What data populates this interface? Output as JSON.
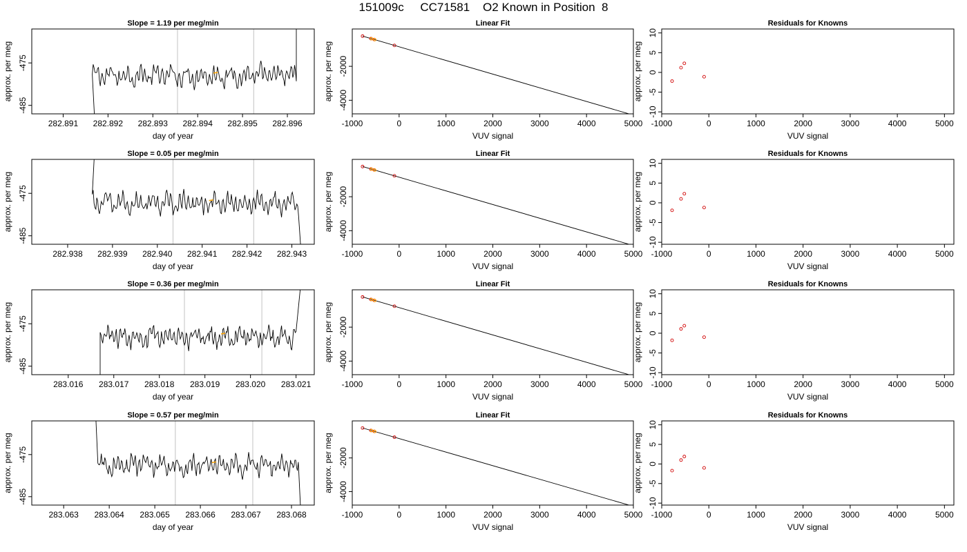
{
  "figure": {
    "title": "151009c     CC71581    O2 Known in Position  8"
  },
  "colors": {
    "trace": "#000000",
    "highlight": "#ffa500",
    "points": "#d00000",
    "guide": "#cccccc",
    "axis": "#000000"
  },
  "chart_data": [
    {
      "type": "line",
      "row": 0,
      "title": "Slope =  1.19  per meg/min",
      "xlabel": "day of year",
      "ylabel": "approx. per meg",
      "xlim": [
        282.8903,
        282.8966
      ],
      "ylim": [
        -487,
        -467
      ],
      "xticks": [
        "282.891",
        "282.892",
        "282.893",
        "282.894",
        "282.895",
        "282.896"
      ],
      "yticks": [
        "-475",
        "-485"
      ],
      "vlines": [
        282.89355,
        282.89525
      ],
      "x_start": 282.89165,
      "x_end": 282.8962,
      "baseline": -478.0,
      "steep_start": [
        282.8917,
        -488
      ],
      "steep_end": [
        282.8962,
        -466
      ],
      "highlight_x": 282.8944
    },
    {
      "type": "line",
      "row": 1,
      "title": "Slope =  0.05  per meg/min",
      "xlabel": "day of year",
      "ylabel": "approx. per meg",
      "xlim": [
        282.9372,
        282.9435
      ],
      "ylim": [
        -487,
        -467
      ],
      "xticks": [
        "282.938",
        "282.939",
        "282.940",
        "282.941",
        "282.942",
        "282.943"
      ],
      "yticks": [
        "-475",
        "-485"
      ],
      "vlines": [
        282.94035,
        282.94215
      ],
      "x_start": 282.93855,
      "x_end": 282.94315,
      "baseline": -477.3,
      "steep_start": [
        282.9386,
        -465
      ],
      "steep_end": [
        282.9432,
        -488
      ],
      "highlight_x": 282.9412
    },
    {
      "type": "line",
      "row": 2,
      "title": "Slope =  0.36  per meg/min",
      "xlabel": "day of year",
      "ylabel": "approx. per meg",
      "xlim": [
        283.0152,
        283.0214
      ],
      "ylim": [
        -487,
        -467
      ],
      "xticks": [
        "283.016",
        "283.017",
        "283.018",
        "283.019",
        "283.020",
        "283.021"
      ],
      "yticks": [
        "-475",
        "-485"
      ],
      "vlines": [
        283.01855,
        283.02025
      ],
      "x_start": 283.0167,
      "x_end": 283.021,
      "baseline": -478.0,
      "steep_start": [
        283.0167,
        -488
      ],
      "steep_end": [
        283.0211,
        -466
      ],
      "highlight_x": 283.0194
    },
    {
      "type": "line",
      "row": 3,
      "title": "Slope =  0.57  per meg/min",
      "xlabel": "day of year",
      "ylabel": "approx. per meg",
      "xlim": [
        283.0623,
        283.0685
      ],
      "ylim": [
        -487,
        -467
      ],
      "xticks": [
        "283.063",
        "283.064",
        "283.065",
        "283.066",
        "283.067",
        "283.068"
      ],
      "yticks": [
        "-475",
        "-485"
      ],
      "vlines": [
        283.06545,
        283.06715
      ],
      "x_start": 283.06375,
      "x_end": 283.06815,
      "baseline": -477.5,
      "steep_start": [
        283.0637,
        -465
      ],
      "steep_end": [
        283.0682,
        -488
      ],
      "highlight_x": 283.0663
    },
    {
      "type": "line",
      "row": 0,
      "title": "Linear Fit",
      "xlabel": "VUV signal",
      "ylabel": "approx. per meg",
      "xlim": [
        -1000,
        5000
      ],
      "ylim": [
        -4800,
        200
      ],
      "xticks": [
        -1000,
        0,
        1000,
        2000,
        3000,
        4000,
        5000
      ],
      "yticks": [
        -2000,
        -4000
      ],
      "line": {
        "x": [
          -780,
          4930
        ],
        "y": [
          -220,
          -4820
        ]
      },
      "points": [
        [
          -780,
          -222
        ],
        [
          -600,
          -368
        ],
        [
          -530,
          -423
        ],
        [
          -100,
          -768
        ]
      ],
      "highlight_points": [
        [
          -590,
          -375
        ],
        [
          -520,
          -430
        ]
      ]
    },
    {
      "type": "line",
      "row": 1,
      "title": "Linear Fit",
      "xlabel": "VUV signal",
      "ylabel": "approx. per meg",
      "xlim": [
        -1000,
        5000
      ],
      "ylim": [
        -4800,
        200
      ],
      "xticks": [
        -1000,
        0,
        1000,
        2000,
        3000,
        4000,
        5000
      ],
      "yticks": [
        -2000,
        -4000
      ],
      "line": {
        "x": [
          -780,
          4930
        ],
        "y": [
          -220,
          -4820
        ]
      },
      "points": [
        [
          -780,
          -222
        ],
        [
          -600,
          -368
        ],
        [
          -530,
          -423
        ],
        [
          -100,
          -768
        ]
      ],
      "highlight_points": [
        [
          -590,
          -375
        ],
        [
          -520,
          -430
        ]
      ]
    },
    {
      "type": "line",
      "row": 2,
      "title": "Linear Fit",
      "xlabel": "VUV signal",
      "ylabel": "approx. per meg",
      "xlim": [
        -1000,
        5000
      ],
      "ylim": [
        -4800,
        200
      ],
      "xticks": [
        -1000,
        0,
        1000,
        2000,
        3000,
        4000,
        5000
      ],
      "yticks": [
        -2000,
        -4000
      ],
      "line": {
        "x": [
          -780,
          4930
        ],
        "y": [
          -220,
          -4820
        ]
      },
      "points": [
        [
          -780,
          -222
        ],
        [
          -600,
          -368
        ],
        [
          -530,
          -423
        ],
        [
          -100,
          -768
        ]
      ],
      "highlight_points": [
        [
          -590,
          -375
        ],
        [
          -520,
          -430
        ]
      ]
    },
    {
      "type": "line",
      "row": 3,
      "title": "Linear Fit",
      "xlabel": "VUV signal",
      "ylabel": "approx. per meg",
      "xlim": [
        -1000,
        5000
      ],
      "ylim": [
        -4800,
        200
      ],
      "xticks": [
        -1000,
        0,
        1000,
        2000,
        3000,
        4000,
        5000
      ],
      "yticks": [
        -2000,
        -4000
      ],
      "line": {
        "x": [
          -780,
          4930
        ],
        "y": [
          -220,
          -4820
        ]
      },
      "points": [
        [
          -780,
          -222
        ],
        [
          -600,
          -368
        ],
        [
          -530,
          -423
        ],
        [
          -100,
          -768
        ]
      ],
      "highlight_points": [
        [
          -590,
          -375
        ],
        [
          -520,
          -430
        ]
      ]
    },
    {
      "type": "scatter",
      "row": 0,
      "title": "Residuals for Knowns",
      "xlabel": "VUV signal",
      "ylabel": "approx. per meg",
      "xlim": [
        -1000,
        5200
      ],
      "ylim": [
        -10.5,
        11
      ],
      "xticks": [
        -1000,
        0,
        1000,
        2000,
        3000,
        4000,
        5000
      ],
      "yticks": [
        10,
        5,
        0,
        -5,
        -10
      ],
      "points": [
        [
          -780,
          -2.2
        ],
        [
          -590,
          1.2
        ],
        [
          -520,
          2.3
        ],
        [
          -100,
          -1.1
        ]
      ]
    },
    {
      "type": "scatter",
      "row": 1,
      "title": "Residuals for Knowns",
      "xlabel": "VUV signal",
      "ylabel": "approx. per meg",
      "xlim": [
        -1000,
        5200
      ],
      "ylim": [
        -10.5,
        11
      ],
      "xticks": [
        -1000,
        0,
        1000,
        2000,
        3000,
        4000,
        5000
      ],
      "yticks": [
        10,
        5,
        0,
        -5,
        -10
      ],
      "points": [
        [
          -780,
          -1.9
        ],
        [
          -590,
          1.0
        ],
        [
          -520,
          2.3
        ],
        [
          -100,
          -1.2
        ]
      ]
    },
    {
      "type": "scatter",
      "row": 2,
      "title": "Residuals for Knowns",
      "xlabel": "VUV signal",
      "ylabel": "approx. per meg",
      "xlim": [
        -1000,
        5200
      ],
      "ylim": [
        -10.5,
        11
      ],
      "xticks": [
        -1000,
        0,
        1000,
        2000,
        3000,
        4000,
        5000
      ],
      "yticks": [
        10,
        5,
        0,
        -5,
        -10
      ],
      "points": [
        [
          -780,
          -1.8
        ],
        [
          -590,
          1.1
        ],
        [
          -520,
          1.9
        ],
        [
          -100,
          -1.0
        ]
      ]
    },
    {
      "type": "scatter",
      "row": 3,
      "title": "Residuals for Knowns",
      "xlabel": "VUV signal",
      "ylabel": "approx. per meg",
      "xlim": [
        -1000,
        5200
      ],
      "ylim": [
        -10.5,
        11
      ],
      "xticks": [
        -1000,
        0,
        1000,
        2000,
        3000,
        4000,
        5000
      ],
      "yticks": [
        10,
        5,
        0,
        -5,
        -10
      ],
      "points": [
        [
          -780,
          -1.7
        ],
        [
          -590,
          1.0
        ],
        [
          -520,
          1.9
        ],
        [
          -100,
          -1.0
        ]
      ]
    }
  ]
}
